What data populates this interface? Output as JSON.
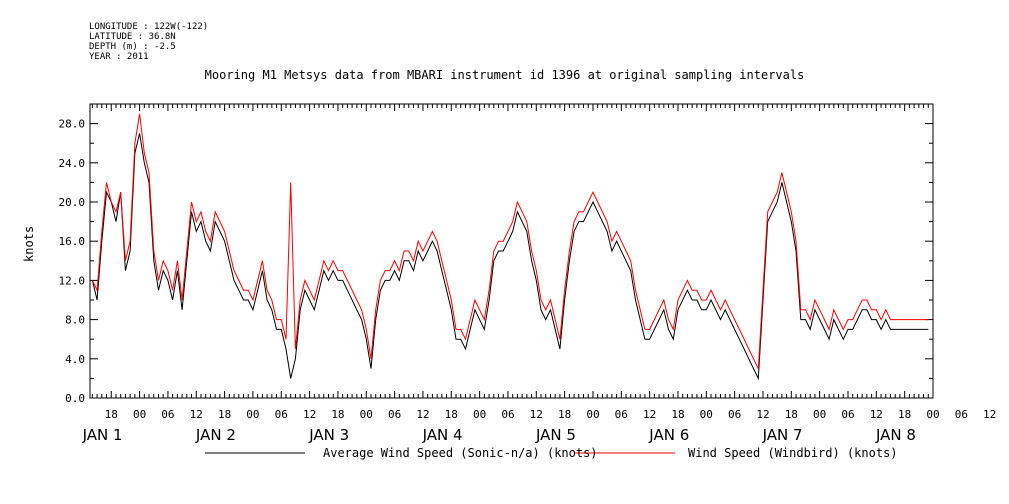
{
  "meta": {
    "longitude": "LONGITUDE : 122W(-122)",
    "latitude": "LATITUDE : 36.8N",
    "depth": "DEPTH (m) : -2.5",
    "year": "YEAR : 2011"
  },
  "colors": {
    "average": "#000000",
    "windbird": "#ff0000"
  },
  "chart_data": {
    "type": "line",
    "title": "Mooring M1 Metsys data from MBARI instrument id 1396 at original sampling intervals",
    "ylabel": "knots",
    "xlabel": "",
    "ylim": [
      0,
      30
    ],
    "xlim_hours": [
      -10.5,
      168
    ],
    "grid": false,
    "legend": "bottom",
    "yticks": [
      "0.0",
      "4.0",
      "8.0",
      "12.0",
      "16.0",
      "20.0",
      "24.0",
      "28.0"
    ],
    "xticks": [
      "18",
      "00",
      "06",
      "12",
      "18",
      "00",
      "06",
      "12",
      "18",
      "00",
      "06",
      "12",
      "18",
      "00",
      "06",
      "12",
      "18",
      "00",
      "06",
      "12",
      "18",
      "00",
      "06",
      "12",
      "18",
      "00",
      "06",
      "12",
      "18",
      "00",
      "06",
      "12"
    ],
    "day_labels": [
      "JAN  1",
      "JAN  2",
      "JAN  3",
      "JAN  4",
      "JAN  5",
      "JAN  6",
      "JAN  7",
      "JAN  8"
    ],
    "series": [
      {
        "name": "Average Wind Speed (Sonic-n/a) (knots)",
        "x": [
          -10,
          -9,
          -8,
          -7,
          -6,
          -5,
          -4,
          -3,
          -2,
          -1,
          0,
          1,
          2,
          3,
          4,
          5,
          6,
          7,
          8,
          9,
          10,
          11,
          12,
          13,
          14,
          15,
          16,
          17,
          18,
          19,
          20,
          21,
          22,
          23,
          24,
          25,
          26,
          27,
          28,
          29,
          30,
          31,
          32,
          33,
          34,
          35,
          36,
          37,
          38,
          39,
          40,
          41,
          42,
          43,
          44,
          45,
          46,
          47,
          48,
          49,
          50,
          51,
          52,
          53,
          54,
          55,
          56,
          57,
          58,
          59,
          60,
          61,
          62,
          63,
          64,
          65,
          66,
          67,
          68,
          69,
          70,
          71,
          72,
          73,
          74,
          75,
          76,
          77,
          78,
          79,
          80,
          81,
          82,
          83,
          84,
          85,
          86,
          87,
          88,
          89,
          90,
          91,
          92,
          93,
          94,
          95,
          96,
          97,
          98,
          99,
          100,
          101,
          102,
          103,
          104,
          105,
          106,
          107,
          108,
          109,
          110,
          111,
          112,
          113,
          114,
          115,
          116,
          117,
          118,
          119,
          120,
          121,
          122,
          123,
          124,
          125,
          126,
          127,
          128,
          129,
          130,
          131,
          132,
          133,
          134,
          135,
          136,
          137,
          138,
          139,
          140,
          141,
          142,
          143,
          144,
          145,
          146,
          147,
          148,
          149,
          150,
          151,
          152,
          153,
          154,
          155,
          156,
          157,
          158,
          159,
          160,
          161,
          162,
          163,
          164,
          165,
          166,
          167
        ],
        "y": [
          12,
          10,
          16,
          21,
          20,
          18,
          21,
          13,
          15,
          25,
          27,
          24,
          22,
          14,
          11,
          13,
          12,
          10,
          13,
          9,
          14,
          19,
          17,
          18,
          16,
          15,
          18,
          17,
          16,
          14,
          12,
          11,
          10,
          10,
          9,
          11,
          13,
          10,
          9,
          7,
          7,
          5,
          2,
          4,
          9,
          11,
          10,
          9,
          11,
          13,
          12,
          13,
          12,
          12,
          11,
          10,
          9,
          8,
          6,
          3,
          8,
          11,
          12,
          12,
          13,
          12,
          14,
          14,
          13,
          15,
          14,
          15,
          16,
          15,
          13,
          11,
          9,
          6,
          6,
          5,
          7,
          9,
          8,
          7,
          10,
          14,
          15,
          15,
          16,
          17,
          19,
          18,
          17,
          14,
          12,
          9,
          8,
          9,
          7,
          5,
          10,
          14,
          17,
          18,
          18,
          19,
          20,
          19,
          18,
          17,
          15,
          16,
          15,
          14,
          13,
          10,
          8,
          6,
          6,
          7,
          8,
          9,
          7,
          6,
          9,
          10,
          11,
          10,
          10,
          9,
          9,
          10,
          9,
          8,
          9,
          8,
          7,
          6,
          5,
          4,
          3,
          2,
          10,
          18,
          19,
          20,
          22,
          20,
          18,
          15,
          8,
          8,
          7,
          9,
          8,
          7,
          6,
          8,
          7,
          6,
          7,
          7,
          8,
          9,
          9,
          8,
          8,
          7,
          8,
          7,
          7,
          7,
          7,
          7,
          7,
          7,
          7,
          7
        ]
      },
      {
        "name": "Wind Speed (Windbird) (knots)",
        "x": [
          -10,
          -9,
          -8,
          -7,
          -6,
          -5,
          -4,
          -3,
          -2,
          -1,
          0,
          1,
          2,
          3,
          4,
          5,
          6,
          7,
          8,
          9,
          10,
          11,
          12,
          13,
          14,
          15,
          16,
          17,
          18,
          19,
          20,
          21,
          22,
          23,
          24,
          25,
          26,
          27,
          28,
          29,
          30,
          31,
          32,
          33,
          34,
          35,
          36,
          37,
          38,
          39,
          40,
          41,
          42,
          43,
          44,
          45,
          46,
          47,
          48,
          49,
          50,
          51,
          52,
          53,
          54,
          55,
          56,
          57,
          58,
          59,
          60,
          61,
          62,
          63,
          64,
          65,
          66,
          67,
          68,
          69,
          70,
          71,
          72,
          73,
          74,
          75,
          76,
          77,
          78,
          79,
          80,
          81,
          82,
          83,
          84,
          85,
          86,
          87,
          88,
          89,
          90,
          91,
          92,
          93,
          94,
          95,
          96,
          97,
          98,
          99,
          100,
          101,
          102,
          103,
          104,
          105,
          106,
          107,
          108,
          109,
          110,
          111,
          112,
          113,
          114,
          115,
          116,
          117,
          118,
          119,
          120,
          121,
          122,
          123,
          124,
          125,
          126,
          127,
          128,
          129,
          130,
          131,
          132,
          133,
          134,
          135,
          136,
          137,
          138,
          139,
          140,
          141,
          142,
          143,
          144,
          145,
          146,
          147,
          148,
          149,
          150,
          151,
          152,
          153,
          154,
          155,
          156,
          157,
          158,
          159,
          160,
          161,
          162,
          163,
          164,
          165,
          166,
          167
        ],
        "y": [
          12,
          11,
          17,
          22,
          20,
          19,
          21,
          14,
          16,
          26,
          29,
          25,
          23,
          15,
          12,
          14,
          13,
          11,
          14,
          10,
          15,
          20,
          18,
          19,
          17,
          16,
          19,
          18,
          17,
          15,
          13,
          12,
          11,
          11,
          10,
          12,
          14,
          11,
          10,
          8,
          8,
          6,
          22,
          5,
          10,
          12,
          11,
          10,
          12,
          14,
          13,
          14,
          13,
          13,
          12,
          11,
          10,
          9,
          7,
          4,
          9,
          12,
          13,
          13,
          14,
          13,
          15,
          15,
          14,
          16,
          15,
          16,
          17,
          16,
          14,
          12,
          10,
          7,
          7,
          6,
          8,
          10,
          9,
          8,
          11,
          15,
          16,
          16,
          17,
          18,
          20,
          19,
          18,
          15,
          13,
          10,
          9,
          10,
          8,
          6,
          11,
          15,
          18,
          19,
          19,
          20,
          21,
          20,
          19,
          18,
          16,
          17,
          16,
          15,
          14,
          11,
          9,
          7,
          7,
          8,
          9,
          10,
          8,
          7,
          10,
          11,
          12,
          11,
          11,
          10,
          10,
          11,
          10,
          9,
          10,
          9,
          8,
          7,
          6,
          5,
          4,
          3,
          11,
          19,
          20,
          21,
          23,
          21,
          19,
          16,
          9,
          9,
          8,
          10,
          9,
          8,
          7,
          9,
          8,
          7,
          8,
          8,
          9,
          10,
          10,
          9,
          9,
          8,
          9,
          8,
          8,
          8,
          8,
          8,
          8,
          8,
          8,
          8
        ]
      }
    ]
  }
}
